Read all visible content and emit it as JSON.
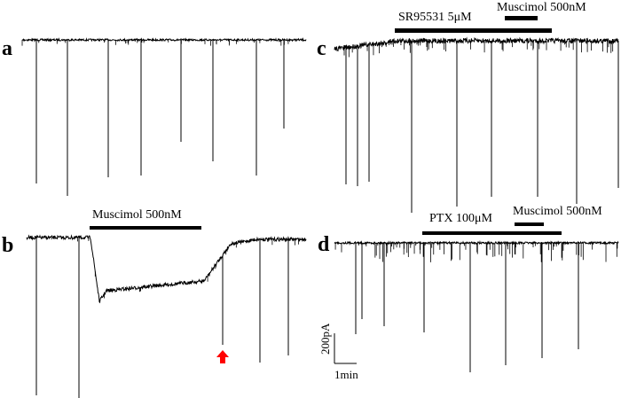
{
  "panels": {
    "a": {
      "letter": "a"
    },
    "b": {
      "letter": "b",
      "drug_label": "Muscimol 500nM"
    },
    "c": {
      "letter": "c",
      "drug1_label": "SR95531 5μM",
      "drug2_label": "Muscimol 500nM"
    },
    "d": {
      "letter": "d",
      "drug1_label": "PTX 100μM",
      "drug2_label": "Muscimol 500nM"
    }
  },
  "scale_bar": {
    "current_label": "200pA",
    "time_label": "1min"
  },
  "colors": {
    "trace": "#000000",
    "marker_arrow": "#ff0000"
  },
  "marker": {
    "icon": "red-up-arrow-icon"
  }
}
